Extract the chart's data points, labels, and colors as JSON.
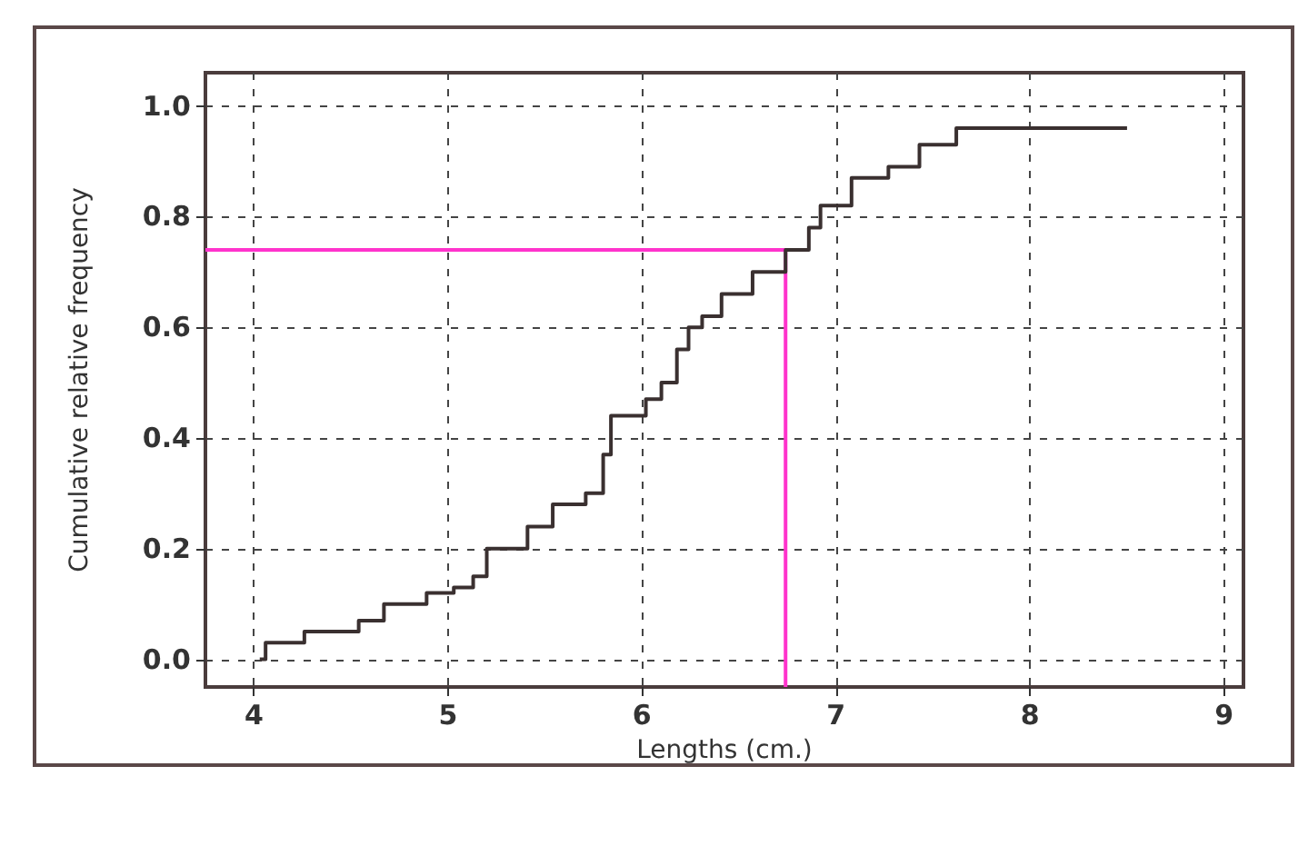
{
  "chart_data": {
    "type": "step",
    "xlabel": "Lengths (cm.)",
    "ylabel": "Cumulative relative frequency",
    "x": [
      4.03,
      4.06,
      4.26,
      4.54,
      4.67,
      4.89,
      5.03,
      5.13,
      5.2,
      5.41,
      5.54,
      5.71,
      5.8,
      5.84,
      6.02,
      6.1,
      6.18,
      6.24,
      6.31,
      6.41,
      6.57,
      6.74,
      6.86,
      6.92,
      7.08,
      7.27,
      7.43,
      7.62,
      8.5
    ],
    "series": [
      {
        "color": "#3a3030",
        "values": [
          0.0,
          0.03,
          0.05,
          0.07,
          0.1,
          0.12,
          0.13,
          0.15,
          0.2,
          0.24,
          0.28,
          0.3,
          0.37,
          0.44,
          0.47,
          0.5,
          0.56,
          0.6,
          0.62,
          0.66,
          0.7,
          0.74,
          0.78,
          0.82,
          0.87,
          0.89,
          0.93,
          0.96,
          0.96
        ]
      }
    ],
    "xlim": [
      3.75,
      9.1
    ],
    "ylim": [
      -0.05,
      1.06
    ],
    "xticks": [
      4,
      5,
      6,
      7,
      8,
      9
    ],
    "yticks": [
      {
        "value": 0,
        "label": "0.0"
      },
      {
        "value": 0.2,
        "label": "0.2"
      },
      {
        "value": 0.4,
        "label": "0.4"
      },
      {
        "value": 0.6,
        "label": "0.6"
      },
      {
        "value": 0.8,
        "label": "0.8"
      },
      {
        "value": 1,
        "label": "1.0"
      }
    ],
    "grid": true,
    "marker": "none",
    "ref_lines": [
      {
        "axis": "y",
        "value": 0.74,
        "color": "#ff33cc"
      },
      {
        "axis": "x",
        "value": 6.74,
        "color": "#ff33cc"
      }
    ]
  }
}
